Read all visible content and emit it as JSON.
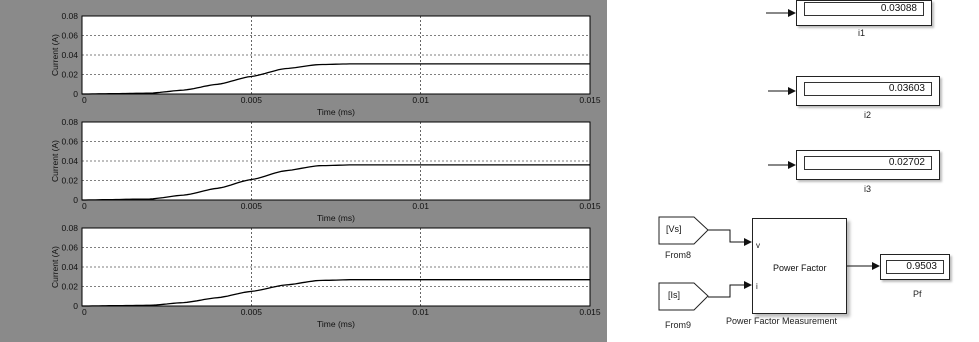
{
  "scopes": [
    {
      "ylabel": "Current (A)",
      "xlabel": "Time (ms)",
      "yticks": [
        "0",
        "0.02",
        "0.04",
        "0.06",
        "0.08"
      ],
      "xticks": [
        "0",
        "0.005",
        "0.01",
        "0.015"
      ]
    },
    {
      "ylabel": "Current (A)",
      "xlabel": "Time (ms)",
      "yticks": [
        "0",
        "0.02",
        "0.04",
        "0.06",
        "0.08"
      ],
      "xticks": [
        "0",
        "0.005",
        "0.01",
        "0.015"
      ]
    },
    {
      "ylabel": "Current (A)",
      "xlabel": "Time (ms)",
      "yticks": [
        "0",
        "0.02",
        "0.04",
        "0.06",
        "0.08"
      ],
      "xticks": [
        "0",
        "0.005",
        "0.01",
        "0.015"
      ]
    }
  ],
  "chart_data": [
    {
      "type": "line",
      "xlabel": "Time (ms)",
      "ylabel": "Current (A)",
      "xlim": [
        0,
        0.015
      ],
      "ylim": [
        0,
        0.08
      ],
      "grid": true,
      "series": [
        {
          "x": [
            0,
            0.002,
            0.003,
            0.004,
            0.005,
            0.006,
            0.007,
            0.008,
            0.01,
            0.015
          ],
          "y": [
            0,
            0.0008,
            0.004,
            0.01,
            0.018,
            0.026,
            0.0302,
            0.0309,
            0.0309,
            0.0309
          ]
        }
      ]
    },
    {
      "type": "line",
      "xlabel": "Time (ms)",
      "ylabel": "Current (A)",
      "xlim": [
        0,
        0.015
      ],
      "ylim": [
        0,
        0.08
      ],
      "grid": true,
      "series": [
        {
          "x": [
            0,
            0.002,
            0.003,
            0.004,
            0.005,
            0.006,
            0.007,
            0.008,
            0.01,
            0.015
          ],
          "y": [
            0,
            0.001,
            0.005,
            0.012,
            0.021,
            0.03,
            0.0352,
            0.036,
            0.036,
            0.036
          ]
        }
      ]
    },
    {
      "type": "line",
      "xlabel": "Time (ms)",
      "ylabel": "Current (A)",
      "xlim": [
        0,
        0.015
      ],
      "ylim": [
        0,
        0.08
      ],
      "grid": true,
      "series": [
        {
          "x": [
            0,
            0.002,
            0.003,
            0.004,
            0.005,
            0.006,
            0.007,
            0.008,
            0.01,
            0.015
          ],
          "y": [
            0,
            0.0007,
            0.0035,
            0.0085,
            0.015,
            0.0215,
            0.0262,
            0.027,
            0.027,
            0.027
          ]
        }
      ]
    }
  ],
  "displays": [
    {
      "value": "0.03088",
      "name": "i1"
    },
    {
      "value": "0.03603",
      "name": "i2"
    },
    {
      "value": "0.02702",
      "name": "i3"
    }
  ],
  "pf_block": {
    "title": "Power Factor",
    "caption": "Power Factor Measurement",
    "port_v": "v",
    "port_i": "i"
  },
  "from_blocks": [
    {
      "tag": "[Vs]",
      "name": "From8"
    },
    {
      "tag": "[Is]",
      "name": "From9"
    }
  ],
  "pf_display": {
    "value": "0.9503",
    "name": "Pf"
  },
  "colors": {
    "scope_bg": "#8a8a8a",
    "axes_bg": "#ffffff",
    "trace": "#000000",
    "grid": "#000000"
  }
}
